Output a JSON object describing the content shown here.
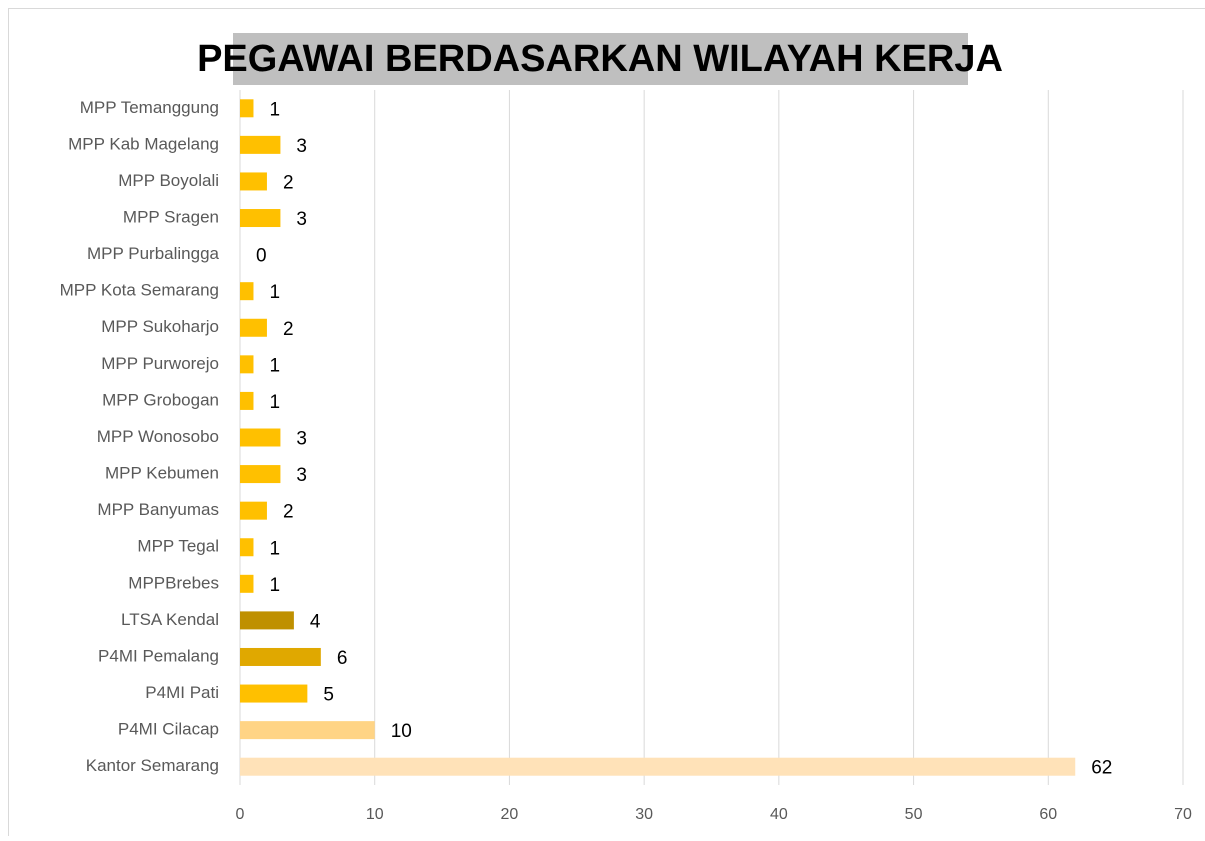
{
  "chart_data": {
    "type": "bar",
    "orientation": "horizontal",
    "title": "PEGAWAI BERDASARKAN WILAYAH KERJA",
    "categories": [
      "MPP Temanggung",
      "MPP Kab Magelang",
      "MPP Boyolali",
      "MPP Sragen",
      "MPP Purbalingga",
      "MPP Kota Semarang",
      "MPP Sukoharjo",
      "MPP Purworejo",
      "MPP Grobogan",
      "MPP Wonosobo",
      "MPP Kebumen",
      "MPP Banyumas",
      "MPP Tegal",
      "MPPBrebes",
      "LTSA Kendal",
      "P4MI Pemalang",
      "P4MI Pati",
      "P4MI Cilacap",
      "Kantor Semarang"
    ],
    "values": [
      1,
      3,
      2,
      3,
      0,
      1,
      2,
      1,
      1,
      3,
      3,
      2,
      1,
      1,
      4,
      6,
      5,
      10,
      62
    ],
    "colors": [
      "#ffc000",
      "#ffc000",
      "#ffc000",
      "#ffc000",
      "#ffc000",
      "#ffc000",
      "#ffc000",
      "#ffc000",
      "#ffc000",
      "#ffc000",
      "#ffc000",
      "#ffc000",
      "#ffc000",
      "#ffc000",
      "#bf9000",
      "#e0a800",
      "#ffc000",
      "#ffd485",
      "#ffe2b8"
    ],
    "xlim": [
      0,
      70
    ],
    "xticks": [
      0,
      10,
      20,
      30,
      40,
      50,
      60,
      70
    ],
    "grid": true
  }
}
